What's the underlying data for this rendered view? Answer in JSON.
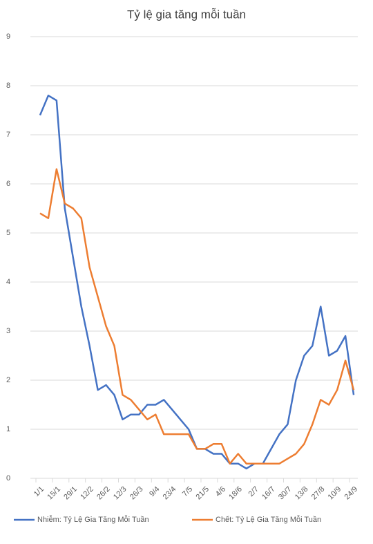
{
  "chart_data": {
    "type": "line",
    "title": "Tỷ lệ gia tăng mỗi tuần",
    "categories": [
      "1/1",
      null,
      "15/1",
      null,
      "29/1",
      null,
      "12/2",
      null,
      "26/2",
      null,
      "12/3",
      null,
      "26/3",
      null,
      "9/4",
      null,
      "23/4",
      null,
      "7/5",
      null,
      "21/5",
      null,
      "4/6",
      null,
      "18/6",
      null,
      "2/7",
      null,
      "16/7",
      null,
      "30/7",
      null,
      "13/8",
      null,
      "27/8",
      null,
      "10/9",
      null,
      "24/9"
    ],
    "series": [
      {
        "name": "Nhiễm: Tỷ Lệ Gia Tăng   Mỗi Tuần",
        "color": "#4472c4",
        "values": [
          7.4,
          7.8,
          7.7,
          5.5,
          4.5,
          3.5,
          2.7,
          1.8,
          1.9,
          1.7,
          1.2,
          1.3,
          1.3,
          1.5,
          1.5,
          1.6,
          1.4,
          1.2,
          1.0,
          0.6,
          0.6,
          0.5,
          0.5,
          0.3,
          0.3,
          0.2,
          0.3,
          0.3,
          0.6,
          0.9,
          1.1,
          2.0,
          2.5,
          2.7,
          3.5,
          2.5,
          2.6,
          2.9,
          1.7
        ]
      },
      {
        "name": "Chết: Tỷ Lệ Gia Tăng Mỗi Tuần",
        "color": "#ed7d31",
        "values": [
          5.4,
          5.3,
          6.3,
          5.6,
          5.5,
          5.3,
          4.3,
          3.7,
          3.1,
          2.7,
          1.7,
          1.6,
          1.4,
          1.2,
          1.3,
          0.9,
          0.9,
          0.9,
          0.9,
          0.6,
          0.6,
          0.7,
          0.7,
          0.3,
          0.5,
          0.3,
          0.3,
          0.3,
          0.3,
          0.3,
          0.4,
          0.5,
          0.7,
          1.1,
          1.6,
          1.5,
          1.8,
          2.4,
          1.8
        ]
      }
    ],
    "ylim": [
      0,
      9
    ],
    "yticks": [
      0,
      1,
      2,
      3,
      4,
      5,
      6,
      7,
      8,
      9
    ],
    "grid": true,
    "legend": "bottom"
  }
}
